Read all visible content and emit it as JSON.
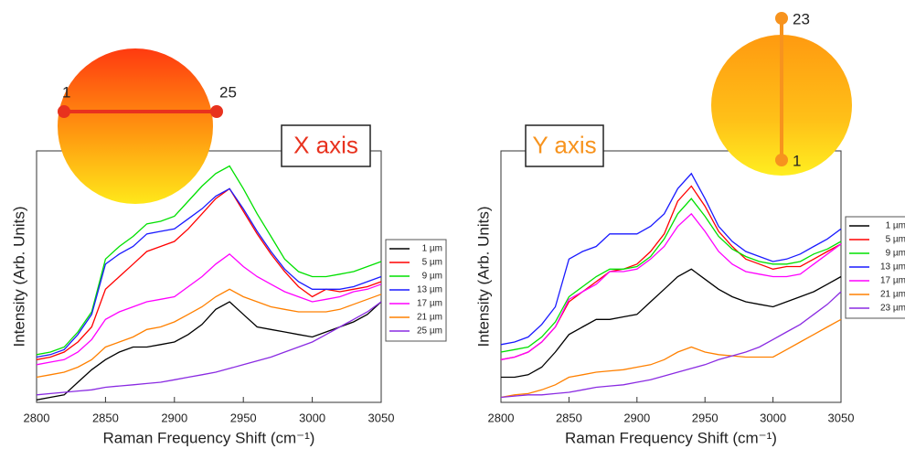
{
  "chart_data": [
    {
      "type": "line",
      "xlabel": "Raman Frequency Shift (cm⁻¹)",
      "ylabel": "Intensity (Arb. Units)",
      "x": [
        2800,
        2810,
        2820,
        2830,
        2840,
        2850,
        2860,
        2870,
        2880,
        2890,
        2900,
        2910,
        2920,
        2930,
        2940,
        2950,
        2960,
        2970,
        2980,
        2990,
        3000,
        3010,
        3020,
        3030,
        3040,
        3050
      ],
      "xlim": [
        2800,
        3050
      ],
      "xticks": [
        2800,
        2850,
        2900,
        2950,
        3000,
        3050
      ],
      "ylim": [
        0,
        100
      ],
      "legend": "right",
      "inset": {
        "orientation": "horizontal",
        "start": "1",
        "end": "25",
        "label": "X axis",
        "label_color": "#e8321e",
        "line_color": "#e8321e"
      },
      "series": [
        {
          "name": "1 µm",
          "color": "#000000",
          "values": [
            1,
            2,
            3,
            8,
            13,
            17,
            20,
            22,
            22,
            23,
            24,
            27,
            31,
            37,
            40,
            35,
            30,
            29,
            28,
            27,
            26,
            28,
            30,
            32,
            35,
            40
          ]
        },
        {
          "name": "5 µm",
          "color": "#ff0000",
          "values": [
            17,
            18,
            20,
            24,
            30,
            45,
            50,
            55,
            60,
            62,
            64,
            69,
            75,
            81,
            85,
            76,
            67,
            59,
            52,
            46,
            42,
            45,
            44,
            45,
            46,
            48
          ]
        },
        {
          "name": "9 µm",
          "color": "#00e000",
          "values": [
            19,
            20,
            22,
            28,
            36,
            57,
            62,
            66,
            71,
            72,
            74,
            80,
            86,
            91,
            94,
            85,
            75,
            66,
            57,
            52,
            50,
            50,
            51,
            52,
            54,
            56
          ]
        },
        {
          "name": "13 µm",
          "color": "#1a1aff",
          "values": [
            18,
            19,
            21,
            27,
            35,
            55,
            59,
            62,
            67,
            68,
            69,
            73,
            77,
            82,
            85,
            77,
            68,
            60,
            53,
            48,
            45,
            45,
            45,
            46,
            48,
            50
          ]
        },
        {
          "name": "17 µm",
          "color": "#ff00ff",
          "values": [
            15,
            16,
            17,
            20,
            25,
            33,
            36,
            38,
            40,
            41,
            42,
            46,
            50,
            55,
            59,
            54,
            50,
            47,
            44,
            42,
            40,
            41,
            42,
            44,
            45,
            47
          ]
        },
        {
          "name": "21 µm",
          "color": "#ff8000",
          "values": [
            10,
            11,
            12,
            14,
            17,
            22,
            24,
            26,
            29,
            30,
            32,
            35,
            38,
            42,
            45,
            42,
            40,
            38,
            37,
            36,
            36,
            36,
            37,
            39,
            41,
            43
          ]
        },
        {
          "name": "25 µm",
          "color": "#8a2be2",
          "values": [
            3,
            3.5,
            4,
            4.5,
            5,
            6,
            6.5,
            7,
            7.5,
            8,
            9,
            10,
            11,
            12,
            13.5,
            15,
            16.5,
            18,
            20,
            22,
            24,
            27,
            30,
            33,
            36,
            40
          ]
        }
      ]
    },
    {
      "type": "line",
      "xlabel": "Raman Frequency Shift (cm⁻¹)",
      "ylabel": "Intensity (Arb. Units)",
      "x": [
        2800,
        2810,
        2820,
        2830,
        2840,
        2850,
        2860,
        2870,
        2880,
        2890,
        2900,
        2910,
        2920,
        2930,
        2940,
        2950,
        2960,
        2970,
        2980,
        2990,
        3000,
        3010,
        3020,
        3030,
        3040,
        3050
      ],
      "xlim": [
        2800,
        3050
      ],
      "xticks": [
        2800,
        2850,
        2900,
        2950,
        3000,
        3050
      ],
      "ylim": [
        0,
        100
      ],
      "legend": "right",
      "inset": {
        "orientation": "vertical",
        "start": "1",
        "end": "23",
        "label": "Y axis",
        "label_color": "#f7931e",
        "line_color": "#f7931e"
      },
      "series": [
        {
          "name": "1 µm",
          "color": "#000000",
          "values": [
            10,
            10,
            11,
            14,
            20,
            27,
            30,
            33,
            33,
            34,
            35,
            40,
            45,
            50,
            53,
            49,
            45,
            42,
            40,
            39,
            38,
            40,
            42,
            44,
            47,
            50
          ]
        },
        {
          "name": "5 µm",
          "color": "#ff0000",
          "values": [
            17,
            18,
            20,
            24,
            30,
            40,
            44,
            48,
            52,
            53,
            55,
            60,
            67,
            80,
            86,
            78,
            68,
            62,
            57,
            55,
            53,
            54,
            54,
            57,
            60,
            63
          ]
        },
        {
          "name": "9 µm",
          "color": "#00e000",
          "values": [
            20,
            21,
            22,
            26,
            32,
            42,
            46,
            50,
            53,
            53,
            54,
            58,
            65,
            75,
            81,
            74,
            66,
            61,
            58,
            56,
            55,
            55,
            56,
            59,
            61,
            64
          ]
        },
        {
          "name": "13 µm",
          "color": "#1a1aff",
          "values": [
            23,
            24,
            26,
            31,
            38,
            57,
            60,
            62,
            67,
            67,
            67,
            70,
            75,
            85,
            91,
            81,
            70,
            64,
            60,
            58,
            56,
            57,
            59,
            62,
            65,
            69
          ]
        },
        {
          "name": "17 µm",
          "color": "#ff00ff",
          "values": [
            17,
            18,
            20,
            24,
            30,
            41,
            44,
            47,
            52,
            52,
            53,
            57,
            62,
            70,
            75,
            68,
            60,
            55,
            52,
            51,
            50,
            50,
            51,
            55,
            59,
            63
          ]
        },
        {
          "name": "21 µm",
          "color": "#ff8000",
          "values": [
            2,
            3,
            3.5,
            5,
            7,
            10,
            11,
            12,
            12.5,
            13,
            14,
            15,
            17,
            20,
            22,
            20,
            19,
            18.5,
            18,
            18,
            18,
            21,
            24,
            27,
            30,
            33
          ]
        },
        {
          "name": "23 µm",
          "color": "#8a2be2",
          "values": [
            2,
            2.5,
            3,
            3,
            3.5,
            4,
            5,
            6,
            6.5,
            7,
            8,
            9,
            10.5,
            12,
            13.5,
            15,
            17,
            18.5,
            20,
            22,
            25,
            28,
            31,
            35,
            39,
            44
          ]
        }
      ]
    }
  ]
}
